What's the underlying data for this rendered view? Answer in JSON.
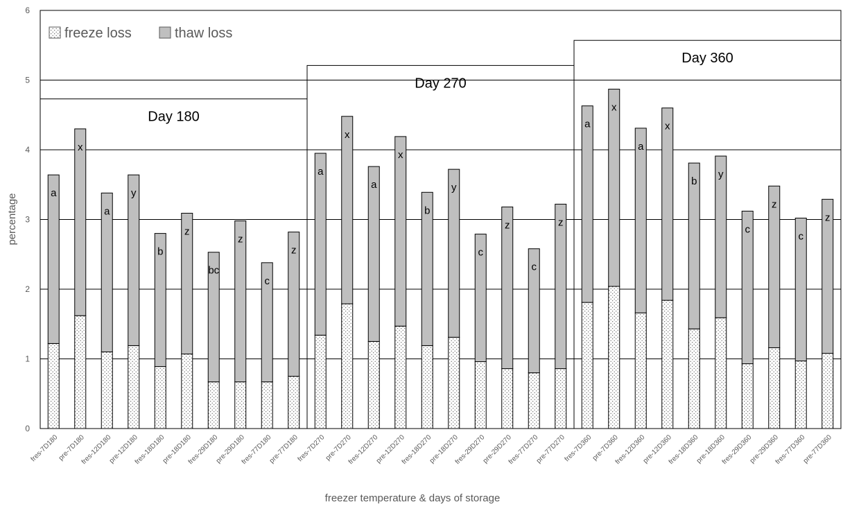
{
  "chart_data": {
    "type": "bar",
    "stacked": true,
    "title": "",
    "xlabel": "freezer temperature & days of storage",
    "ylabel": "percentage",
    "ylim": [
      0,
      6
    ],
    "yticks": [
      "0",
      "1",
      "2",
      "3",
      "4",
      "5",
      "6"
    ],
    "grid": true,
    "legend_position": "top-left",
    "categories": [
      "fres-7D180",
      "pre-7D180",
      "fres-12D180",
      "pre-12D180",
      "fres-18D180",
      "pre-18D180",
      "fres-29D180",
      "pre-29D180",
      "fres-77D180",
      "pre-77D180",
      "fres-7D270",
      "pre-7D270",
      "fres-12D270",
      "pre-12D270",
      "fres-18D270",
      "pre-18D270",
      "fres-29D270",
      "pre-29D270",
      "fres-77D270",
      "pre-77D270",
      "fres-7D360",
      "pre-7D360",
      "fres-12D360",
      "pre-12D360",
      "fres-18D360",
      "pre-18D360",
      "fres-29D360",
      "pre-29D360",
      "fres-77D360",
      "pre-77D360"
    ],
    "series": [
      {
        "name": "freeze loss",
        "pattern": "dots",
        "color": "#ffffff",
        "values": [
          1.22,
          1.62,
          1.1,
          1.19,
          0.89,
          1.07,
          0.67,
          0.67,
          0.67,
          0.75,
          1.34,
          1.79,
          1.25,
          1.47,
          1.19,
          1.31,
          0.96,
          0.86,
          0.8,
          0.86,
          1.81,
          2.04,
          1.66,
          1.84,
          1.43,
          1.59,
          0.93,
          1.16,
          0.97,
          1.08
        ]
      },
      {
        "name": "thaw loss",
        "color": "#bfbfbf",
        "values": [
          2.42,
          2.68,
          2.28,
          2.45,
          1.91,
          2.02,
          1.86,
          2.31,
          1.71,
          2.07,
          2.61,
          2.69,
          2.51,
          2.72,
          2.2,
          2.41,
          1.83,
          2.32,
          1.78,
          2.36,
          2.82,
          2.83,
          2.65,
          2.76,
          2.38,
          2.32,
          2.19,
          2.32,
          2.05,
          2.21
        ]
      }
    ],
    "bar_labels": [
      "a",
      "x",
      "a",
      "y",
      "b",
      "z",
      "bc",
      "z",
      "c",
      "z",
      "a",
      "x",
      "a",
      "x",
      "b",
      "y",
      "c",
      "z",
      "c",
      "z",
      "a",
      "x",
      "a",
      "x",
      "b",
      "y",
      "c",
      "z",
      "c",
      "z"
    ],
    "groups": [
      {
        "label": "Day 180",
        "level": 4.73
      },
      {
        "label": "Day 270",
        "level": 5.21
      },
      {
        "label": "Day 360",
        "level": 5.57
      }
    ]
  }
}
